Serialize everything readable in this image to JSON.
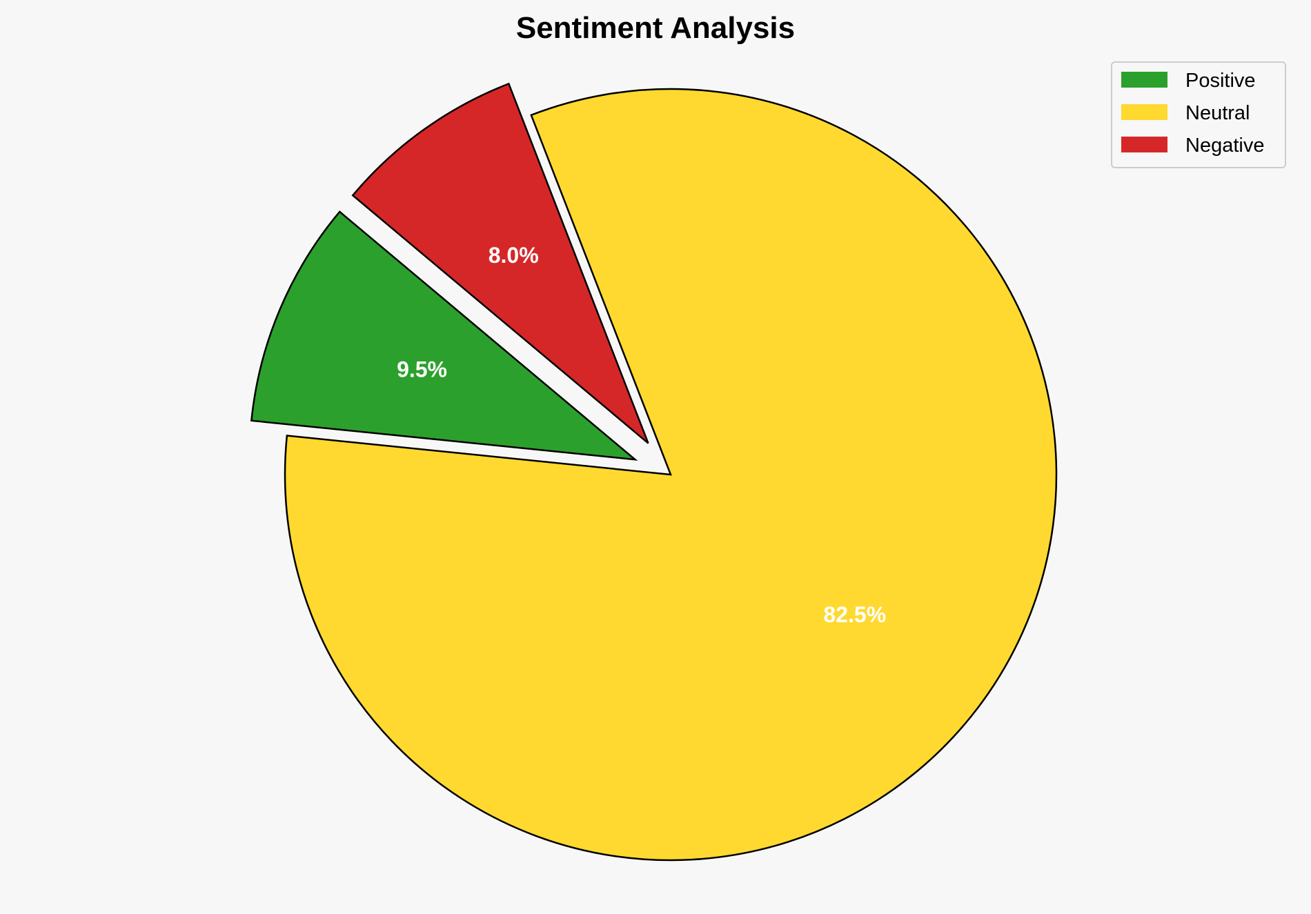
{
  "chart_data": {
    "type": "pie",
    "title": "Sentiment Analysis",
    "categories": [
      "Positive",
      "Neutral",
      "Negative"
    ],
    "values": [
      9.5,
      82.5,
      8.0
    ],
    "labels": [
      "9.5%",
      "82.5%",
      "8.0%"
    ],
    "colors": [
      "#2ca02c",
      "#ffd92f",
      "#d62728"
    ],
    "explode": [
      0.1,
      0,
      0.1
    ],
    "start_angle": 140,
    "direction": "counterclockwise",
    "edge_color": "#000000",
    "legend_placement": "top-right",
    "background": "#f7f7f7"
  }
}
